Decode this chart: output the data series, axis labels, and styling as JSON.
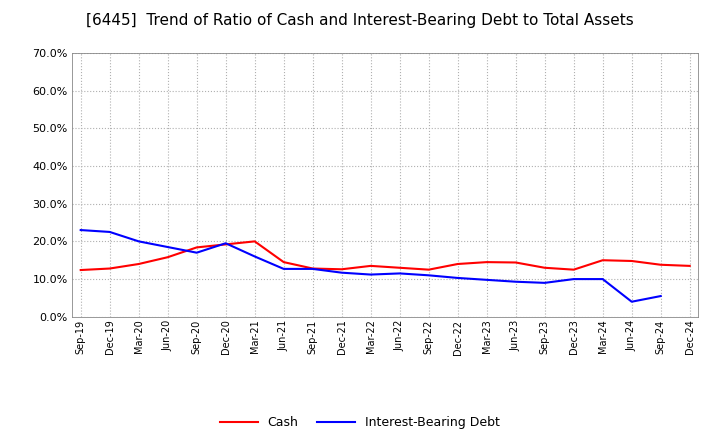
{
  "title": "[6445]  Trend of Ratio of Cash and Interest-Bearing Debt to Total Assets",
  "x_labels": [
    "Sep-19",
    "Dec-19",
    "Mar-20",
    "Jun-20",
    "Sep-20",
    "Dec-20",
    "Mar-21",
    "Jun-21",
    "Sep-21",
    "Dec-21",
    "Mar-22",
    "Jun-22",
    "Sep-22",
    "Dec-22",
    "Mar-23",
    "Jun-23",
    "Sep-23",
    "Dec-23",
    "Mar-24",
    "Jun-24",
    "Sep-24",
    "Dec-24"
  ],
  "cash": [
    0.124,
    0.128,
    0.14,
    0.158,
    0.184,
    0.192,
    0.2,
    0.145,
    0.128,
    0.126,
    0.135,
    0.13,
    0.125,
    0.14,
    0.145,
    0.144,
    0.13,
    0.125,
    0.15,
    0.148,
    0.138,
    0.135
  ],
  "interest_bearing_debt": [
    0.23,
    0.225,
    0.2,
    0.185,
    0.17,
    0.195,
    0.16,
    0.127,
    0.127,
    0.117,
    0.112,
    0.115,
    0.11,
    0.103,
    0.098,
    0.093,
    0.09,
    0.1,
    0.1,
    0.04,
    0.055,
    null
  ],
  "cash_color": "#ff0000",
  "debt_color": "#0000ff",
  "ylim": [
    0.0,
    0.7
  ],
  "yticks": [
    0.0,
    0.1,
    0.2,
    0.3,
    0.4,
    0.5,
    0.6,
    0.7
  ],
  "background_color": "#ffffff",
  "grid_color": "#b0b0b0",
  "title_fontsize": 11,
  "legend_cash": "Cash",
  "legend_debt": "Interest-Bearing Debt"
}
